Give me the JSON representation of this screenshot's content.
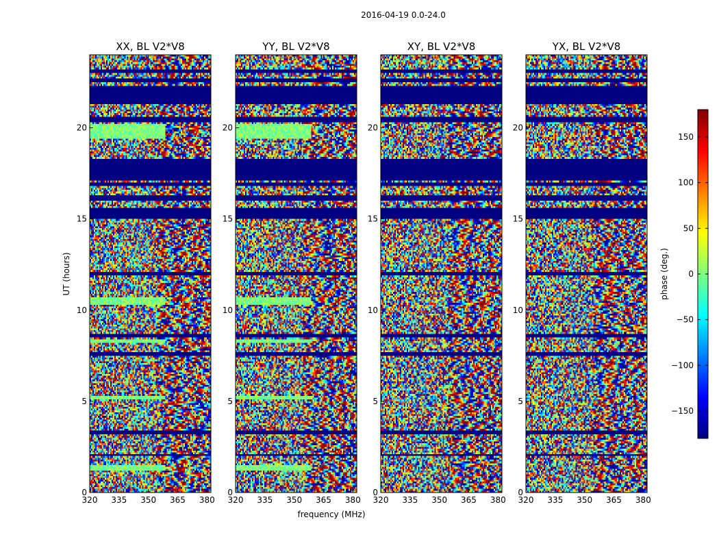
{
  "figure": {
    "suptitle": "2016-04-19 0.0-24.0"
  },
  "chart_data": {
    "type": "heatmap",
    "title": "2016-04-19 0.0-24.0",
    "xlabel": "frequency (MHz)",
    "ylabel": "UT (hours)",
    "xlim": [
      320,
      382
    ],
    "ylim": [
      0,
      24
    ],
    "x_ticks": [
      320,
      335,
      350,
      365,
      380
    ],
    "y_ticks": [
      0,
      5,
      10,
      15,
      20
    ],
    "panels": [
      {
        "title": "XX, BL V2*V8"
      },
      {
        "title": "YY, BL V2*V8"
      },
      {
        "title": "XY, BL V2*V8"
      },
      {
        "title": "YX, BL V2*V8"
      }
    ],
    "colorbar": {
      "label": "phase (deg.)",
      "range": [
        -180,
        180
      ],
      "ticks": [
        -150,
        -100,
        -50,
        0,
        50,
        100,
        150
      ],
      "tick_labels": [
        "−150",
        "−100",
        "−50",
        "0",
        "50",
        "100",
        "150"
      ],
      "colormap": "jet",
      "colors": [
        "#00007f",
        "#0000ff",
        "#007fff",
        "#00ffff",
        "#7fff7f",
        "#ffff00",
        "#ff7f00",
        "#ff0000",
        "#7f0000"
      ]
    },
    "masked_bands_hours": [
      [
        21.35,
        22.25
      ],
      [
        20.3,
        20.55
      ],
      [
        22.5,
        22.7
      ],
      [
        17.1,
        18.3
      ],
      [
        15.05,
        15.55
      ],
      [
        16.05,
        16.25
      ],
      [
        11.9,
        12.05
      ],
      [
        8.5,
        8.65
      ],
      [
        7.5,
        7.65
      ],
      [
        3.25,
        3.4
      ],
      [
        2.0,
        2.12
      ],
      [
        23.05,
        23.2
      ],
      [
        16.85,
        16.95
      ]
    ],
    "flat_bands_hours": [
      [
        19.4,
        20.2
      ],
      [
        10.3,
        10.7
      ],
      [
        5.1,
        5.3
      ],
      [
        1.2,
        1.45
      ],
      [
        8.2,
        8.35
      ]
    ]
  }
}
